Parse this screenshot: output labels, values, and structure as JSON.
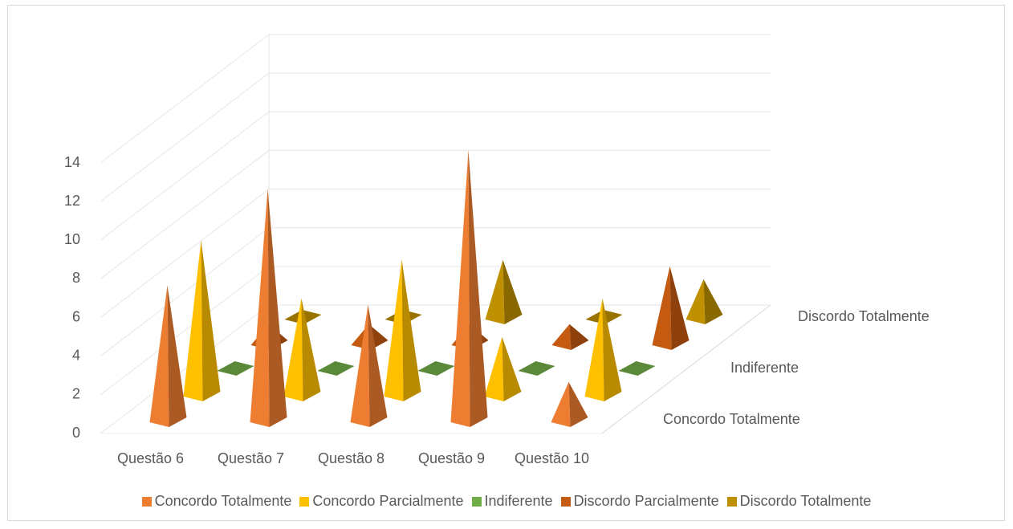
{
  "chart_data": {
    "type": "pyramid3d",
    "categories": [
      "Questão 6",
      "Questão 7",
      "Questão 8",
      "Questão 9",
      "Questão 10"
    ],
    "series": [
      {
        "name": "Concordo Totalmente",
        "color": "#ED7D31",
        "values": [
          7,
          12,
          6,
          14,
          2
        ]
      },
      {
        "name": "Concordo Parcialmente",
        "color": "#FFC000",
        "values": [
          8,
          5,
          7,
          3,
          5
        ]
      },
      {
        "name": "Indiferente",
        "color": "#70AD47",
        "values": [
          0,
          0,
          0,
          0,
          0
        ]
      },
      {
        "name": "Discordo Parcialmente",
        "color": "#C55A11",
        "values": [
          1,
          1,
          1,
          1,
          4
        ]
      },
      {
        "name": "Discordo Totalmente",
        "color": "#BF9000",
        "values": [
          0,
          0,
          3,
          0,
          2
        ]
      }
    ],
    "depth_labels": [
      0,
      2,
      4
    ],
    "ylim": [
      0,
      14
    ],
    "yticks": [
      0,
      2,
      4,
      6,
      8,
      10,
      12,
      14
    ],
    "grid": true,
    "legend": "bottom"
  }
}
